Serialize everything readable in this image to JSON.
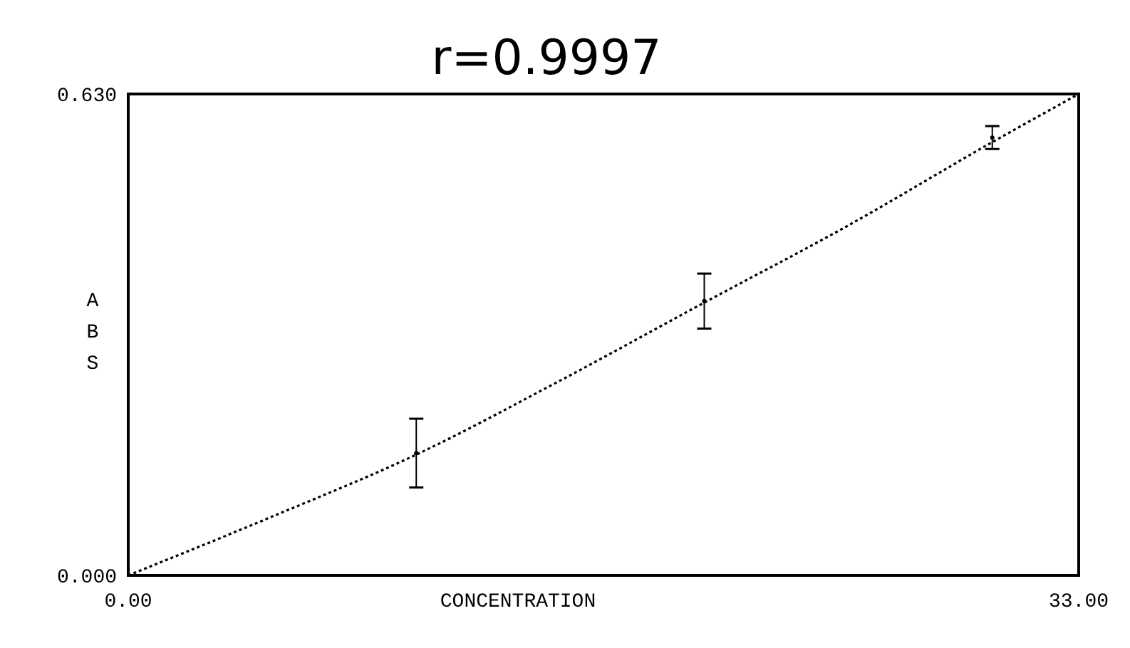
{
  "chart_data": {
    "type": "scatter",
    "title": "r=0.9997",
    "xlabel": "CONCENTRATION",
    "ylabel": "ABS",
    "xlim": [
      0,
      33
    ],
    "ylim": [
      0,
      0.63
    ],
    "xticks": [
      {
        "value": 0,
        "label": "0.00"
      },
      {
        "value": 33,
        "label": "33.00"
      }
    ],
    "yticks": [
      {
        "value": 0,
        "label": "0.000"
      },
      {
        "value": 0.63,
        "label": "0.630"
      }
    ],
    "line_style": "dotted",
    "series": [
      {
        "type": "line",
        "color": "#000000",
        "x": [
          0,
          5,
          10,
          15,
          20,
          25,
          30,
          33
        ],
        "values": [
          0,
          0.077,
          0.158,
          0.255,
          0.357,
          0.458,
          0.567,
          0.63
        ]
      },
      {
        "type": "scatter",
        "color": "#000000",
        "x": [
          10,
          20,
          30
        ],
        "values": [
          0.16,
          0.359,
          0.573
        ],
        "errors": [
          0.045,
          0.036,
          0.015
        ]
      }
    ]
  }
}
